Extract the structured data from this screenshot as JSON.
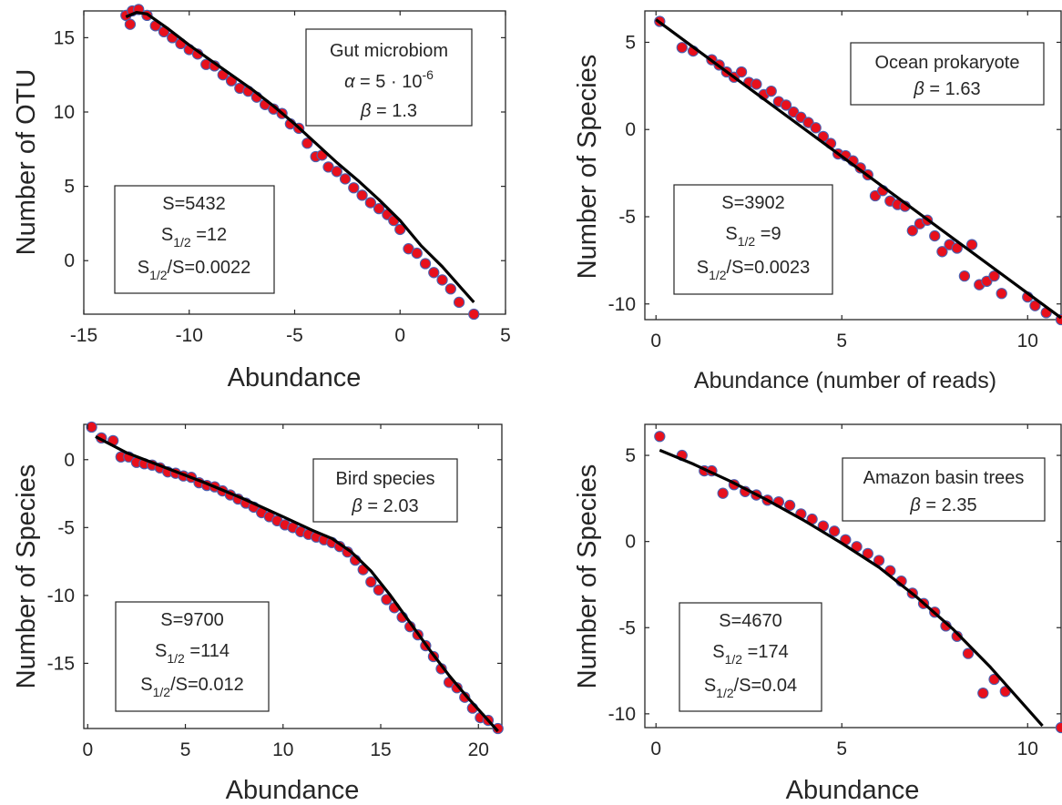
{
  "colors": {
    "point_fill": "#e8101c",
    "point_edge": "#4a60b0",
    "fit_line": "#000000",
    "axis": "#262626",
    "box_edge": "#262626"
  },
  "chart_data": [
    {
      "type": "scatter",
      "title": "",
      "xlabel": "Abundance",
      "ylabel": "Number of OTU",
      "xlim": [
        -15,
        5
      ],
      "ylim": [
        -3.6,
        16.8
      ],
      "xticks": [
        "-15",
        "-10",
        "-5",
        "0",
        "5"
      ],
      "xtick_values": [
        -15,
        -10,
        -5,
        0,
        5
      ],
      "yticks": [
        "0",
        "5",
        "10",
        "15"
      ],
      "ytick_values": [
        0,
        5,
        10,
        15
      ],
      "grid": false,
      "series": [
        {
          "kind": "points",
          "x": [
            -13,
            -12.8,
            -12.7,
            -12.4,
            -12,
            -11.6,
            -11.2,
            -10.8,
            -10.4,
            -10,
            -9.6,
            -9.2,
            -8.8,
            -8.4,
            -8,
            -7.6,
            -7.2,
            -6.8,
            -6.4,
            -6,
            -5.6,
            -5.2,
            -4.8,
            -4.4,
            -4,
            -3.7,
            -3.4,
            -3,
            -2.6,
            -2.2,
            -1.8,
            -1.4,
            -1,
            -0.6,
            -0.3,
            0,
            0.4,
            0.8,
            1.2,
            1.6,
            2,
            2.4,
            2.8,
            3.5
          ],
          "y": [
            16.5,
            15.9,
            16.8,
            16.9,
            16.5,
            15.8,
            15.4,
            15,
            14.6,
            14.2,
            13.9,
            13.2,
            13.1,
            12.5,
            12.1,
            11.6,
            11.4,
            11,
            10.5,
            10.2,
            9.9,
            9.2,
            8.9,
            7.9,
            7,
            7.1,
            6.3,
            6,
            5.5,
            4.9,
            4.4,
            3.9,
            3.5,
            3.1,
            2.7,
            2.1,
            0.8,
            0.5,
            -0.2,
            -0.8,
            -1.3,
            -1.9,
            -2.8,
            -3.6
          ]
        },
        {
          "kind": "fit",
          "x": [
            -13,
            -12.5,
            -12,
            -11,
            -10,
            -9,
            -8,
            -7,
            -6,
            -5,
            -4,
            -3,
            -2,
            -1,
            0,
            1,
            2,
            3,
            3.5
          ],
          "y": [
            16.4,
            16.7,
            16.6,
            15.6,
            14.5,
            13.5,
            12.5,
            11.5,
            10.4,
            9.2,
            7.9,
            6.6,
            5.4,
            4.1,
            2.7,
            1,
            -0.4,
            -2,
            -2.8
          ]
        }
      ],
      "annotations": {
        "name_box": {
          "line1": "Gut microbiom",
          "alpha_symbol": "α",
          "alpha_text": " = 5 · 10",
          "alpha_exp": "-6",
          "beta_symbol": "β",
          "beta_text": " = 1.3"
        },
        "stats_box": {
          "s_text": "S=5432",
          "s_half_base": "S",
          "s_half_sub": "1/2",
          "s_half_val": " =12",
          "ratio_base": "S",
          "ratio_sub": "1/2",
          "ratio_val": "/S=0.0022"
        }
      }
    },
    {
      "type": "scatter",
      "title": "",
      "xlabel": "Abundance (number of reads)",
      "ylabel": "Number of Species",
      "xlim": [
        -0.3,
        10.9
      ],
      "ylim": [
        -10.9,
        6.8
      ],
      "xticks": [
        "0",
        "5",
        "10"
      ],
      "xtick_values": [
        0,
        5,
        10
      ],
      "yticks": [
        "5",
        "0",
        "-5",
        "-10"
      ],
      "ytick_values": [
        5,
        0,
        -5,
        -10
      ],
      "grid": false,
      "series": [
        {
          "kind": "points",
          "x": [
            0.1,
            0.7,
            1,
            1.5,
            1.7,
            1.9,
            2.1,
            2.3,
            2.5,
            2.7,
            2.9,
            3.1,
            3.3,
            3.5,
            3.7,
            3.9,
            4.1,
            4.3,
            4.5,
            4.7,
            4.9,
            5.1,
            5.3,
            5.5,
            5.7,
            5.9,
            6.1,
            6.3,
            6.5,
            6.7,
            6.9,
            7.1,
            7.3,
            7.5,
            7.7,
            7.9,
            8.1,
            8.3,
            8.5,
            8.7,
            8.9,
            9.1,
            9.3,
            10,
            10.2,
            10.5,
            10.9
          ],
          "y": [
            6.2,
            4.7,
            4.5,
            4,
            3.7,
            3.3,
            3,
            3.3,
            2.7,
            2.6,
            2,
            2.2,
            1.6,
            1.4,
            1,
            0.7,
            0.4,
            0.1,
            -0.4,
            -0.8,
            -1.4,
            -1.5,
            -1.8,
            -2.2,
            -2.6,
            -3.8,
            -3.5,
            -4.1,
            -4.3,
            -4.4,
            -5.8,
            -5.4,
            -5.2,
            -6.1,
            -7,
            -6.6,
            -6.8,
            -8.4,
            -6.6,
            -8.9,
            -8.7,
            -8.4,
            -9.4,
            -9.6,
            -10.1,
            -10.5,
            -10.9
          ]
        },
        {
          "kind": "fit",
          "x": [
            0,
            10.9
          ],
          "y": [
            6.3,
            -10.8
          ]
        }
      ],
      "annotations": {
        "name_box": {
          "line1": "Ocean prokaryote",
          "beta_symbol": "β",
          "beta_text": " = 1.63"
        },
        "stats_box": {
          "s_text": "S=3902",
          "s_half_base": "S",
          "s_half_sub": "1/2",
          "s_half_val": " =9",
          "ratio_base": "S",
          "ratio_sub": "1/2",
          "ratio_val": "/S=0.0023"
        }
      }
    },
    {
      "type": "scatter",
      "title": "",
      "xlabel": "Abundance",
      "ylabel": "Number of Species",
      "xlim": [
        -0.2,
        21.2
      ],
      "ylim": [
        -19.8,
        2.6
      ],
      "xticks": [
        "0",
        "5",
        "10",
        "15",
        "20"
      ],
      "xtick_values": [
        0,
        5,
        10,
        15,
        20
      ],
      "yticks": [
        "0",
        "-5",
        "-10",
        "-15"
      ],
      "ytick_values": [
        0,
        -5,
        -10,
        -15
      ],
      "grid": false,
      "series": [
        {
          "kind": "points",
          "x": [
            0.2,
            0.7,
            1.3,
            1.7,
            2.1,
            2.5,
            2.9,
            3.3,
            3.7,
            4.1,
            4.5,
            4.9,
            5.3,
            5.7,
            6.1,
            6.5,
            6.9,
            7.3,
            7.7,
            8.1,
            8.5,
            8.9,
            9.3,
            9.7,
            10.1,
            10.5,
            10.9,
            11.3,
            11.7,
            12.1,
            12.5,
            12.9,
            13.3,
            13.7,
            14.1,
            14.5,
            14.9,
            15.3,
            15.7,
            16.1,
            16.5,
            16.9,
            17.3,
            17.7,
            18.1,
            18.5,
            18.9,
            19.3,
            19.7,
            20.1,
            20.5,
            21
          ],
          "y": [
            2.4,
            1.6,
            1.4,
            0.2,
            0.2,
            -0.2,
            -0.3,
            -0.4,
            -0.6,
            -0.9,
            -1,
            -1.2,
            -1.3,
            -1.7,
            -1.9,
            -2,
            -2.3,
            -2.6,
            -2.9,
            -3.2,
            -3.5,
            -3.9,
            -4.2,
            -4.5,
            -4.8,
            -5,
            -5.3,
            -5.5,
            -5.7,
            -5.9,
            -6.1,
            -6.4,
            -6.8,
            -7.4,
            -8.1,
            -9,
            -9.6,
            -10.3,
            -10.9,
            -11.6,
            -12.3,
            -12.9,
            -13.7,
            -14.5,
            -15.4,
            -16.4,
            -16.8,
            -17.5,
            -18.3,
            -19,
            -19.2,
            -19.8
          ]
        },
        {
          "kind": "fit",
          "x": [
            0.4,
            2,
            4,
            6,
            8,
            10,
            11.5,
            12.5,
            13.5,
            14.5,
            15.5,
            16.5,
            17.5,
            18.5,
            19.5,
            20.5,
            21
          ],
          "y": [
            1.7,
            0.5,
            -0.6,
            -1.7,
            -2.9,
            -4.2,
            -5.2,
            -5.8,
            -6.8,
            -8.2,
            -10,
            -12,
            -14,
            -15.9,
            -17.6,
            -19.2,
            -20
          ]
        }
      ],
      "annotations": {
        "name_box": {
          "line1": "Bird species",
          "beta_symbol": "β",
          "beta_text": " = 2.03"
        },
        "stats_box": {
          "s_text": "S=9700",
          "s_half_base": "S",
          "s_half_sub": "1/2",
          "s_half_val": " =114",
          "ratio_base": "S",
          "ratio_sub": "1/2",
          "ratio_val": "/S=0.012"
        }
      }
    },
    {
      "type": "scatter",
      "title": "",
      "xlabel": "Abundance",
      "ylabel": "Number of Species",
      "xlim": [
        -0.3,
        10.9
      ],
      "ylim": [
        -10.8,
        6.8
      ],
      "xticks": [
        "0",
        "5",
        "10"
      ],
      "xtick_values": [
        0,
        5,
        10
      ],
      "yticks": [
        "5",
        "0",
        "-5",
        "-10"
      ],
      "ytick_values": [
        5,
        0,
        -5,
        -10
      ],
      "grid": false,
      "series": [
        {
          "kind": "points",
          "x": [
            0.1,
            0.7,
            1.3,
            1.5,
            1.8,
            2.1,
            2.4,
            2.7,
            3,
            3.3,
            3.6,
            3.9,
            4.2,
            4.5,
            4.8,
            5.1,
            5.4,
            5.7,
            6,
            6.3,
            6.6,
            6.9,
            7.2,
            7.5,
            7.8,
            8.1,
            8.4,
            8.8,
            9.1,
            9.4,
            10.9
          ],
          "y": [
            6.1,
            5,
            4.1,
            4.1,
            2.8,
            3.3,
            2.9,
            2.7,
            2.4,
            2.3,
            2.1,
            1.6,
            1.3,
            0.9,
            0.6,
            0.1,
            -0.3,
            -0.7,
            -1.1,
            -1.7,
            -2.3,
            -3,
            -3.6,
            -4.1,
            -4.9,
            -5.5,
            -6.5,
            -8.8,
            -8,
            -8.7,
            -10.8
          ]
        },
        {
          "kind": "fit",
          "x": [
            0.1,
            1,
            2,
            3,
            4,
            5,
            6,
            7,
            8,
            9,
            10.4
          ],
          "y": [
            5.3,
            4.5,
            3.5,
            2.4,
            1.2,
            -0.1,
            -1.5,
            -3.2,
            -5.1,
            -7.3,
            -10.7
          ]
        }
      ],
      "annotations": {
        "name_box": {
          "line1": "Amazon basin trees",
          "beta_symbol": "β",
          "beta_text": " = 2.35"
        },
        "stats_box": {
          "s_text": "S=4670",
          "s_half_base": "S",
          "s_half_sub": "1/2",
          "s_half_val": " =174",
          "ratio_base": "S",
          "ratio_sub": "1/2",
          "ratio_val": "/S=0.04"
        }
      }
    }
  ]
}
